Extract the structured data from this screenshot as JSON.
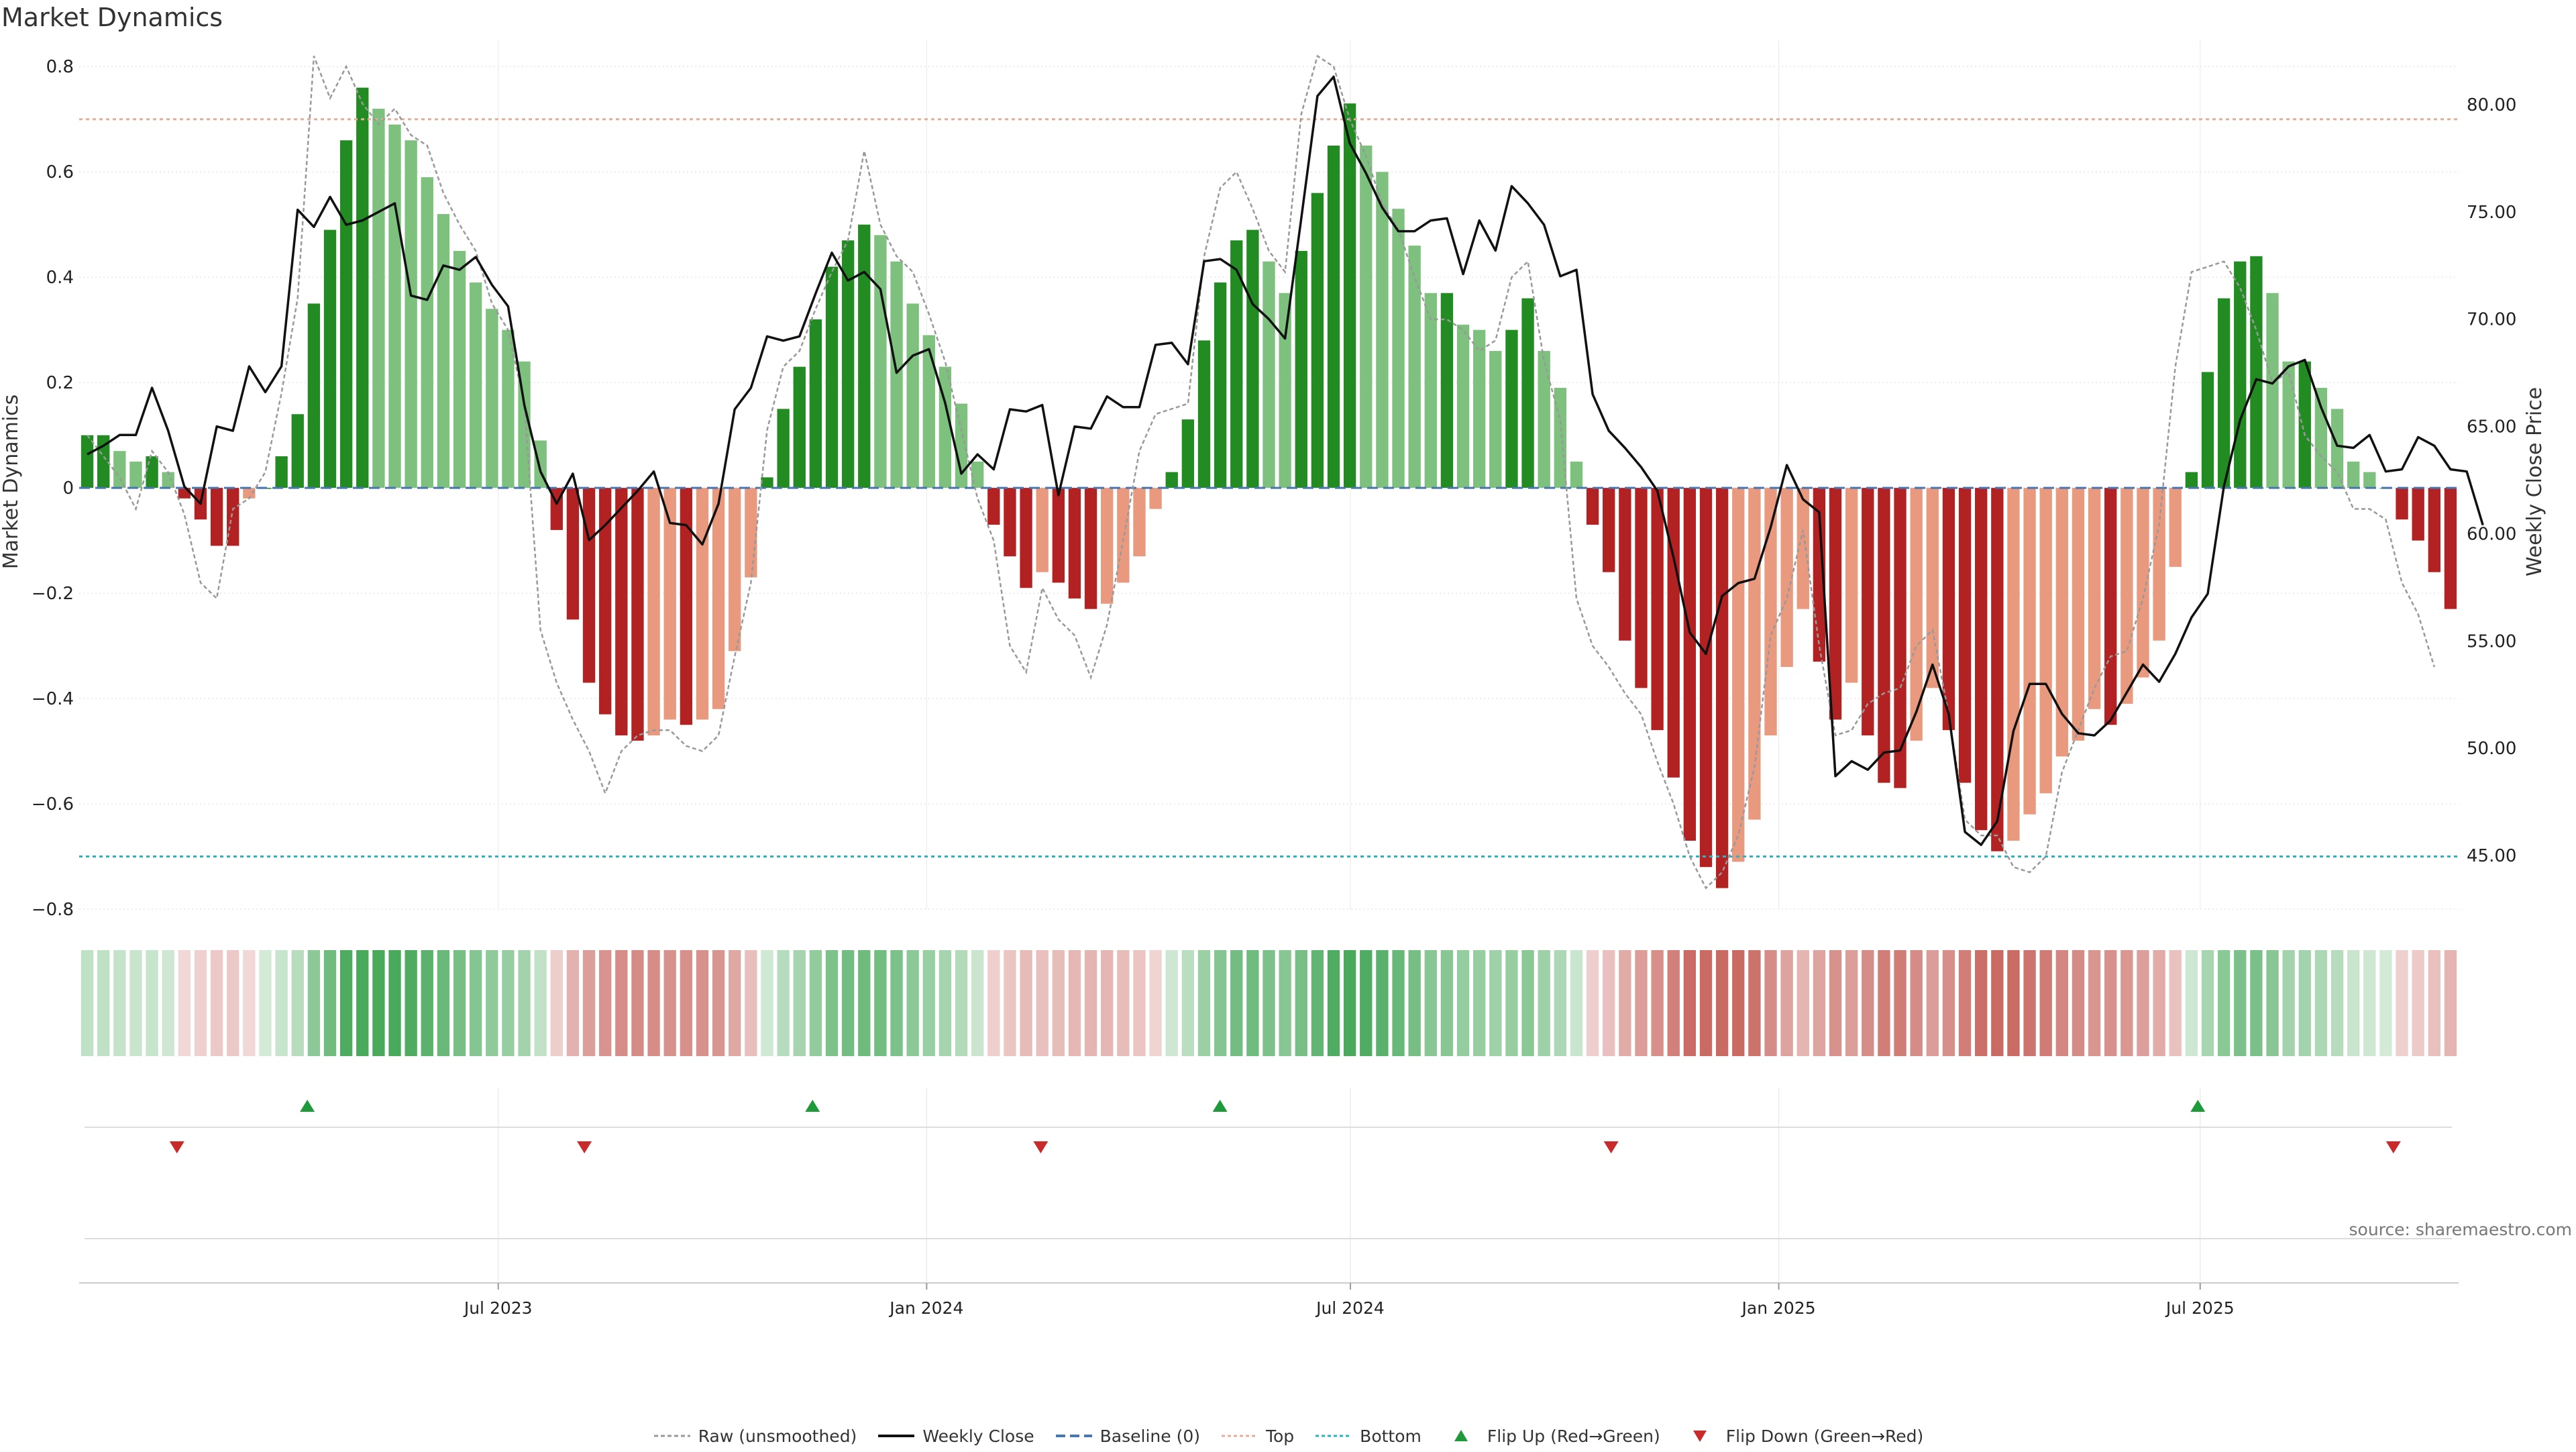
{
  "chart_data": {
    "type": "bar",
    "title": "Market Dynamics",
    "ylabel": "Market Dynamics",
    "y2label": "Weekly Close Price",
    "ylim": [
      -0.8,
      0.85
    ],
    "y2lim": [
      42.5,
      83
    ],
    "yticks": [
      "0.8",
      "0.6",
      "0.4",
      "0.2",
      "0",
      "−0.2",
      "−0.4",
      "−0.6",
      "−0.8"
    ],
    "y2ticks": [
      "80.00",
      "75.00",
      "70.00",
      "65.00",
      "60.00",
      "55.00",
      "50.00",
      "45.00"
    ],
    "x_start": "2023-01-02",
    "x_end": "2025-10-20",
    "xticks": [
      {
        "date": "2023-07-01",
        "label": "Jul 2023"
      },
      {
        "date": "2024-01-01",
        "label": "Jan 2024"
      },
      {
        "date": "2024-07-01",
        "label": "Jul 2024"
      },
      {
        "date": "2025-01-01",
        "label": "Jan 2025"
      },
      {
        "date": "2025-07-01",
        "label": "Jul 2025"
      }
    ],
    "top_threshold": 0.7,
    "bottom_threshold": -0.7,
    "baseline": 0,
    "grid": true,
    "legend_position": "bottom-center",
    "values": [
      0.1,
      0.1,
      0.07,
      0.05,
      0.06,
      0.03,
      -0.02,
      -0.06,
      -0.11,
      -0.11,
      -0.02,
      0,
      0.06,
      0.14,
      0.35,
      0.49,
      0.66,
      0.76,
      0.72,
      0.69,
      0.66,
      0.59,
      0.52,
      0.45,
      0.39,
      0.34,
      0.3,
      0.24,
      0.09,
      -0.08,
      -0.25,
      -0.37,
      -0.43,
      -0.47,
      -0.48,
      -0.47,
      -0.44,
      -0.45,
      -0.44,
      -0.42,
      -0.31,
      -0.17,
      0.02,
      0.15,
      0.23,
      0.32,
      0.42,
      0.47,
      0.5,
      0.48,
      0.43,
      0.35,
      0.29,
      0.23,
      0.16,
      0.05,
      -0.07,
      -0.13,
      -0.19,
      -0.16,
      -0.18,
      -0.21,
      -0.23,
      -0.22,
      -0.18,
      -0.13,
      -0.04,
      0.03,
      0.13,
      0.28,
      0.39,
      0.47,
      0.49,
      0.43,
      0.37,
      0.45,
      0.56,
      0.65,
      0.73,
      0.65,
      0.6,
      0.53,
      0.46,
      0.37,
      0.37,
      0.31,
      0.3,
      0.26,
      0.3,
      0.36,
      0.26,
      0.19,
      0.05,
      -0.07,
      -0.16,
      -0.29,
      -0.38,
      -0.46,
      -0.55,
      -0.67,
      -0.72,
      -0.76,
      -0.71,
      -0.63,
      -0.47,
      -0.34,
      -0.23,
      -0.33,
      -0.44,
      -0.37,
      -0.47,
      -0.56,
      -0.57,
      -0.48,
      -0.38,
      -0.46,
      -0.56,
      -0.65,
      -0.69,
      -0.67,
      -0.62,
      -0.58,
      -0.51,
      -0.48,
      -0.42,
      -0.45,
      -0.41,
      -0.36,
      -0.29,
      -0.15,
      0.03,
      0.22,
      0.36,
      0.43,
      0.44,
      0.37,
      0.24,
      0.24,
      0.19,
      0.15,
      0.05,
      0.03,
      0,
      -0.06,
      -0.1,
      -0.16,
      -0.23
    ],
    "series": [
      {
        "name": "Raw (unsmoothed)",
        "values": [
          0.1,
          0.06,
          0.02,
          -0.04,
          0.07,
          0.03,
          -0.05,
          -0.18,
          -0.21,
          -0.04,
          -0.02,
          0.03,
          0.18,
          0.36,
          0.82,
          0.74,
          0.8,
          0.73,
          0.69,
          0.72,
          0.67,
          0.65,
          0.56,
          0.5,
          0.45,
          0.35,
          0.3,
          0.16,
          -0.27,
          -0.37,
          -0.44,
          -0.5,
          -0.58,
          -0.5,
          -0.47,
          -0.46,
          -0.46,
          -0.49,
          -0.5,
          -0.47,
          -0.32,
          -0.18,
          0.11,
          0.23,
          0.26,
          0.34,
          0.41,
          0.47,
          0.64,
          0.5,
          0.44,
          0.41,
          0.33,
          0.24,
          0.11,
          -0.02,
          -0.1,
          -0.3,
          -0.35,
          -0.19,
          -0.25,
          -0.28,
          -0.36,
          -0.26,
          -0.1,
          0.07,
          0.14,
          0.15,
          0.16,
          0.44,
          0.57,
          0.6,
          0.53,
          0.45,
          0.41,
          0.71,
          0.82,
          0.8,
          0.7,
          0.63,
          0.54,
          0.49,
          0.4,
          0.32,
          0.32,
          0.3,
          0.26,
          0.28,
          0.4,
          0.43,
          0.24,
          0.13,
          -0.21,
          -0.3,
          -0.34,
          -0.39,
          -0.43,
          -0.52,
          -0.6,
          -0.7,
          -0.76,
          -0.73,
          -0.66,
          -0.53,
          -0.28,
          -0.21,
          -0.08,
          -0.3,
          -0.47,
          -0.46,
          -0.41,
          -0.39,
          -0.38,
          -0.3,
          -0.27,
          -0.43,
          -0.63,
          -0.66,
          -0.66,
          -0.72,
          -0.73,
          -0.7,
          -0.54,
          -0.46,
          -0.38,
          -0.32,
          -0.31,
          -0.21,
          -0.07,
          0.23,
          0.41,
          0.42,
          0.43,
          0.38,
          0.3,
          0.2,
          0.22,
          0.1,
          0.06,
          0.03,
          -0.04,
          -0.04,
          -0.06,
          -0.18,
          -0.24,
          -0.34
        ]
      },
      {
        "name": "Weekly Close",
        "values": [
          63.7,
          64.1,
          64.6,
          64.6,
          66.8,
          64.8,
          62.2,
          61.4,
          65.0,
          64.8,
          67.8,
          66.6,
          67.8,
          75.1,
          74.3,
          75.7,
          74.4,
          74.6,
          75.0,
          75.4,
          71.1,
          70.9,
          72.5,
          72.3,
          72.9,
          71.6,
          70.6,
          66.0,
          62.9,
          61.4,
          62.8,
          59.7,
          60.4,
          61.2,
          62.0,
          62.9,
          60.5,
          60.4,
          59.5,
          61.4,
          65.8,
          66.8,
          69.2,
          69.0,
          69.2,
          71.2,
          73.1,
          71.8,
          72.2,
          71.4,
          67.5,
          68.3,
          68.6,
          66.1,
          62.8,
          63.7,
          63.0,
          65.8,
          65.7,
          66.0,
          61.8,
          65.0,
          64.9,
          66.4,
          65.9,
          65.9,
          68.8,
          68.9,
          67.9,
          72.7,
          72.8,
          72.3,
          70.7,
          70.0,
          69.1,
          74.7,
          80.4,
          81.3,
          78.2,
          76.8,
          75.2,
          74.1,
          74.1,
          74.6,
          74.7,
          72.1,
          74.6,
          73.2,
          76.2,
          75.4,
          74.4,
          72.0,
          72.3,
          66.5,
          64.8,
          64.0,
          63.1,
          62.0,
          58.9,
          55.4,
          54.4,
          57.1,
          57.7,
          57.9,
          60.3,
          63.2,
          61.6,
          61.0,
          48.7,
          49.4,
          49.0,
          49.8,
          49.9,
          51.7,
          53.9,
          51.6,
          46.1,
          45.5,
          46.6,
          50.8,
          53.0,
          53.0,
          51.6,
          50.7,
          50.6,
          51.3,
          52.6,
          53.9,
          53.1,
          54.4,
          56.1,
          57.2,
          62.2,
          65.3,
          67.2,
          67.0,
          67.8,
          68.1,
          65.9,
          64.1,
          64.0,
          64.6,
          62.9,
          63.0,
          64.5,
          64.1,
          63.0,
          62.9,
          60.4
        ]
      },
      {
        "name": "Baseline (0)"
      },
      {
        "name": "Top"
      },
      {
        "name": "Bottom"
      },
      {
        "name": "Flip Up (Red→Green)"
      },
      {
        "name": "Flip Down (Green→Red)"
      }
    ],
    "flip_up_dates": [
      "2023-04-10",
      "2023-11-13",
      "2024-05-06",
      "2025-06-30"
    ],
    "flip_down_dates": [
      "2023-02-13",
      "2023-08-07",
      "2024-02-19",
      "2024-10-21",
      "2025-09-22"
    ]
  },
  "colors": {
    "bull_strong": "#228b22",
    "bull_weak": "#7ec07e",
    "bear_strong": "#b22222",
    "bear_weak": "#e99a7e",
    "price_line": "#111111",
    "raw_line": "#999999",
    "baseline": "#4a76b0",
    "top": "#e2b09a",
    "bottom": "#2bb3c0",
    "flip_up": "#1f9a3a",
    "flip_down": "#c92a2a"
  },
  "source": "source: sharemaestro.com"
}
